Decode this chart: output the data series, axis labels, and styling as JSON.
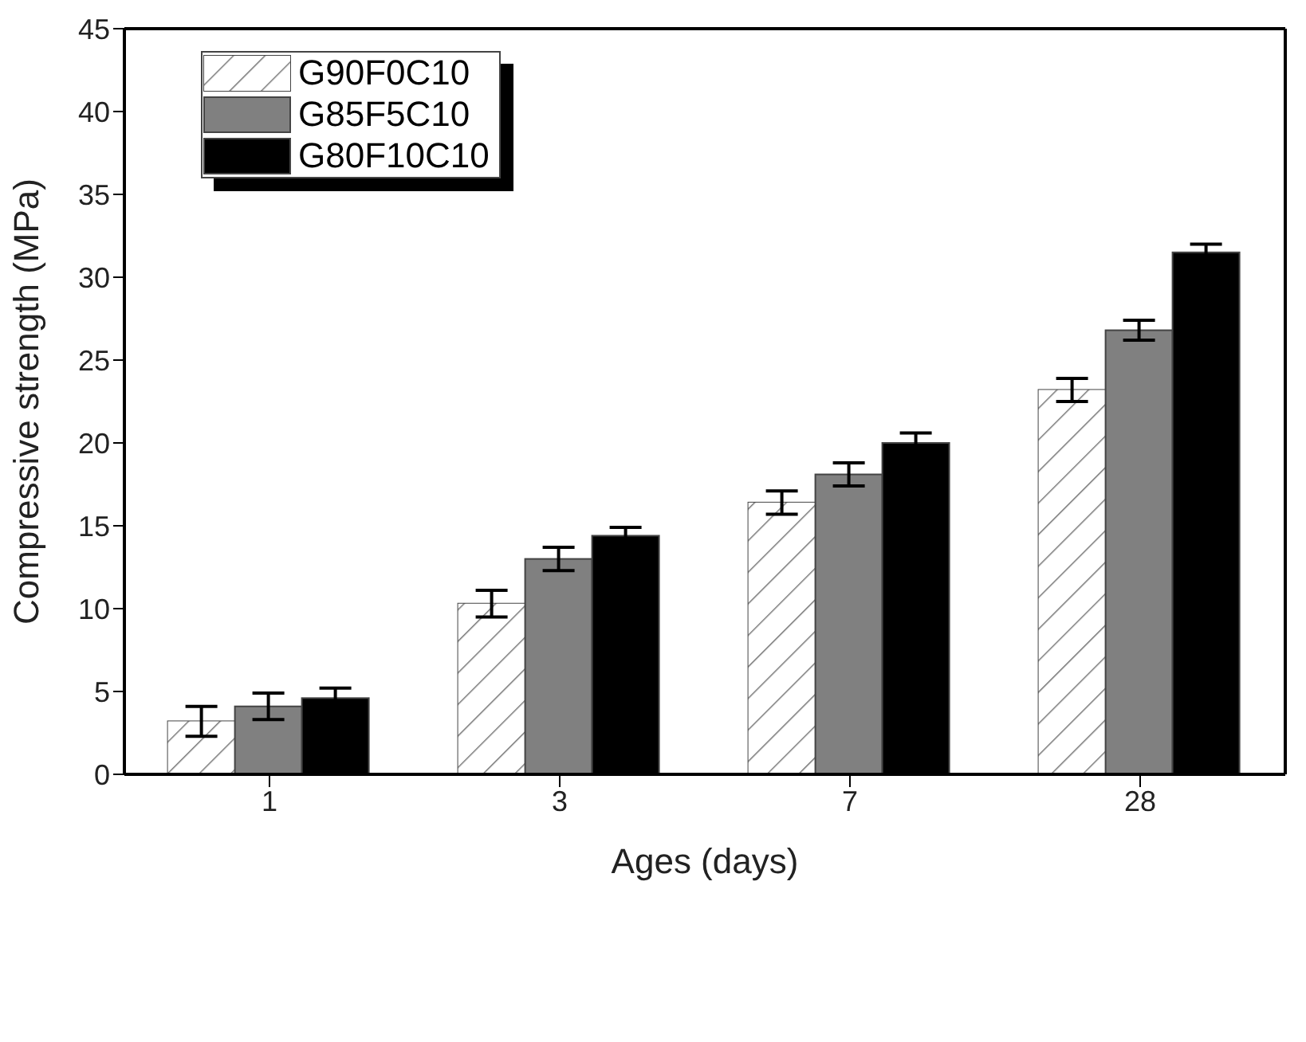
{
  "chart_data": {
    "type": "bar",
    "xlabel": "Ages (days)",
    "ylabel": "Compressive strength (MPa)",
    "categories": [
      "1",
      "3",
      "7",
      "28"
    ],
    "series": [
      {
        "name": "G90F0C10",
        "color": "#ffffff",
        "values": [
          3.2,
          10.3,
          16.4,
          23.2
        ],
        "errors": [
          0.9,
          0.8,
          0.7,
          0.7
        ]
      },
      {
        "name": "G85F5C10",
        "color": "#808080",
        "values": [
          4.1,
          13.0,
          18.1,
          26.8
        ],
        "errors": [
          0.8,
          0.7,
          0.7,
          0.6
        ]
      },
      {
        "name": "G80F10C10",
        "color": "#000000",
        "values": [
          4.6,
          14.4,
          20.0,
          31.5
        ],
        "errors": [
          0.6,
          0.5,
          0.6,
          0.5
        ]
      }
    ],
    "ylim": [
      0,
      45
    ],
    "yticks": [
      0,
      5,
      10,
      15,
      20,
      25,
      30,
      35,
      40,
      45
    ],
    "legend": "top left"
  }
}
